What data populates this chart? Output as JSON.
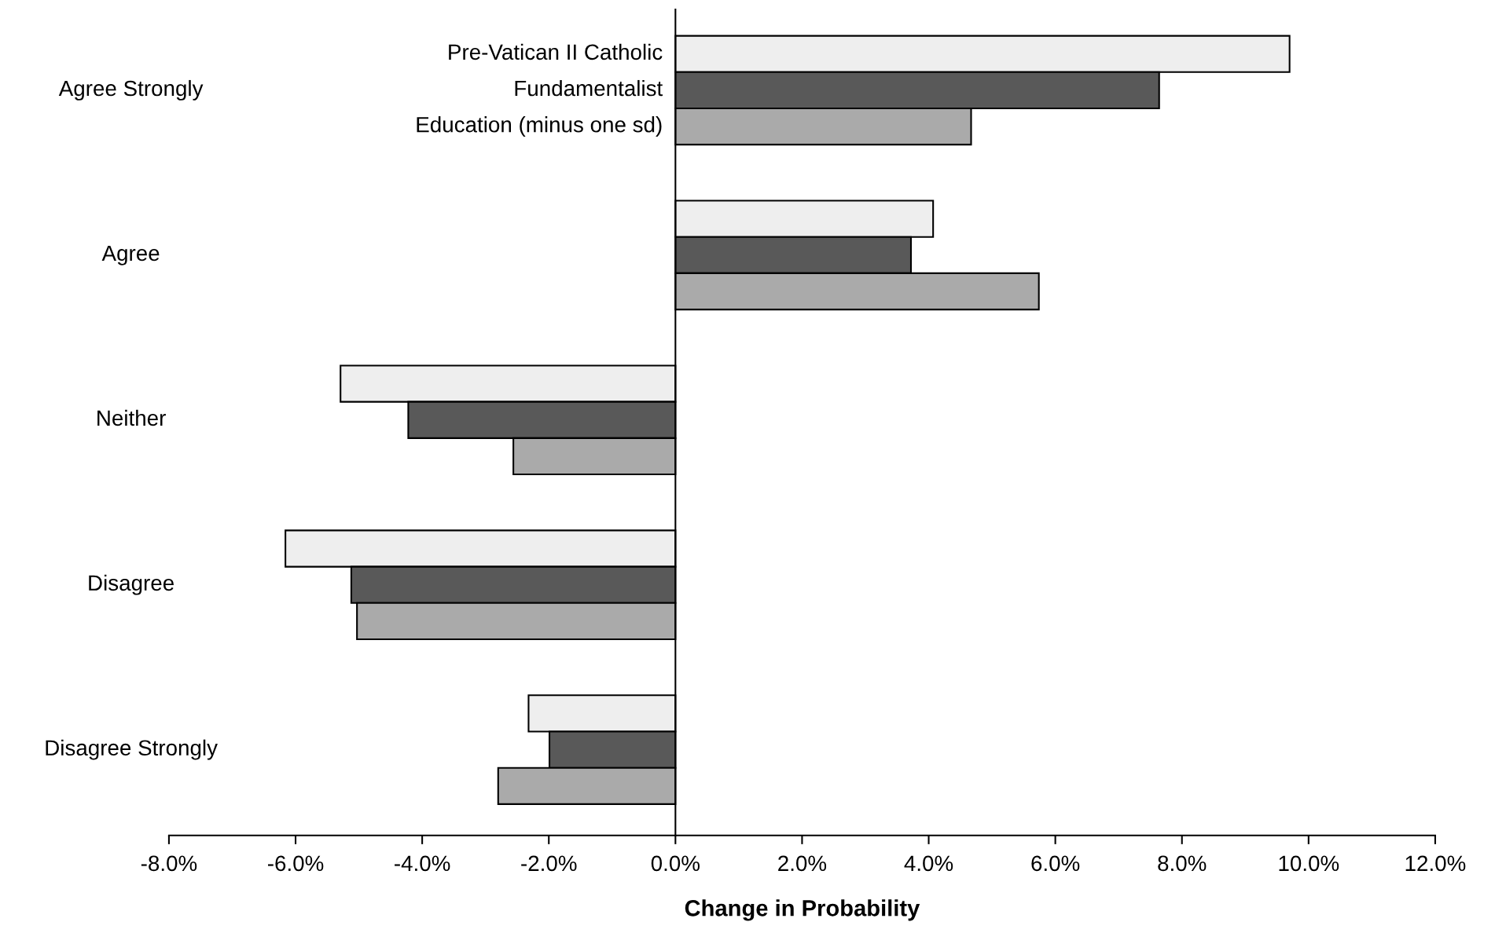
{
  "chart_data": {
    "type": "bar",
    "orientation": "horizontal",
    "xlabel": "Change in Probability",
    "categories": [
      "Agree Strongly",
      "Agree",
      "Neither",
      "Disagree",
      "Disagree Strongly"
    ],
    "series": [
      {
        "name": "Pre-Vatican II Catholic",
        "color": "#eeeeee",
        "values": [
          9.7,
          4.07,
          -5.29,
          -6.16,
          -2.32
        ]
      },
      {
        "name": "Fundamentalist",
        "color": "#595959",
        "values": [
          7.64,
          3.72,
          -4.22,
          -5.12,
          -1.99
        ]
      },
      {
        "name": "Education (minus one sd)",
        "color": "#aaaaaa",
        "values": [
          4.67,
          5.74,
          -2.56,
          -5.03,
          -2.8
        ]
      }
    ],
    "xlim": [
      -8,
      12
    ],
    "xticks": [
      {
        "value": -8,
        "label": "-8.0%"
      },
      {
        "value": -6,
        "label": "-6.0%"
      },
      {
        "value": -4,
        "label": "-4.0%"
      },
      {
        "value": -2,
        "label": "-2.0%"
      },
      {
        "value": 0,
        "label": "0.0%"
      },
      {
        "value": 2,
        "label": "2.0%"
      },
      {
        "value": 4,
        "label": "4.0%"
      },
      {
        "value": 6,
        "label": "6.0%"
      },
      {
        "value": 8,
        "label": "8.0%"
      },
      {
        "value": 10,
        "label": "10.0%"
      },
      {
        "value": 12,
        "label": "12.0%"
      }
    ],
    "tick_labels": "x"
  }
}
